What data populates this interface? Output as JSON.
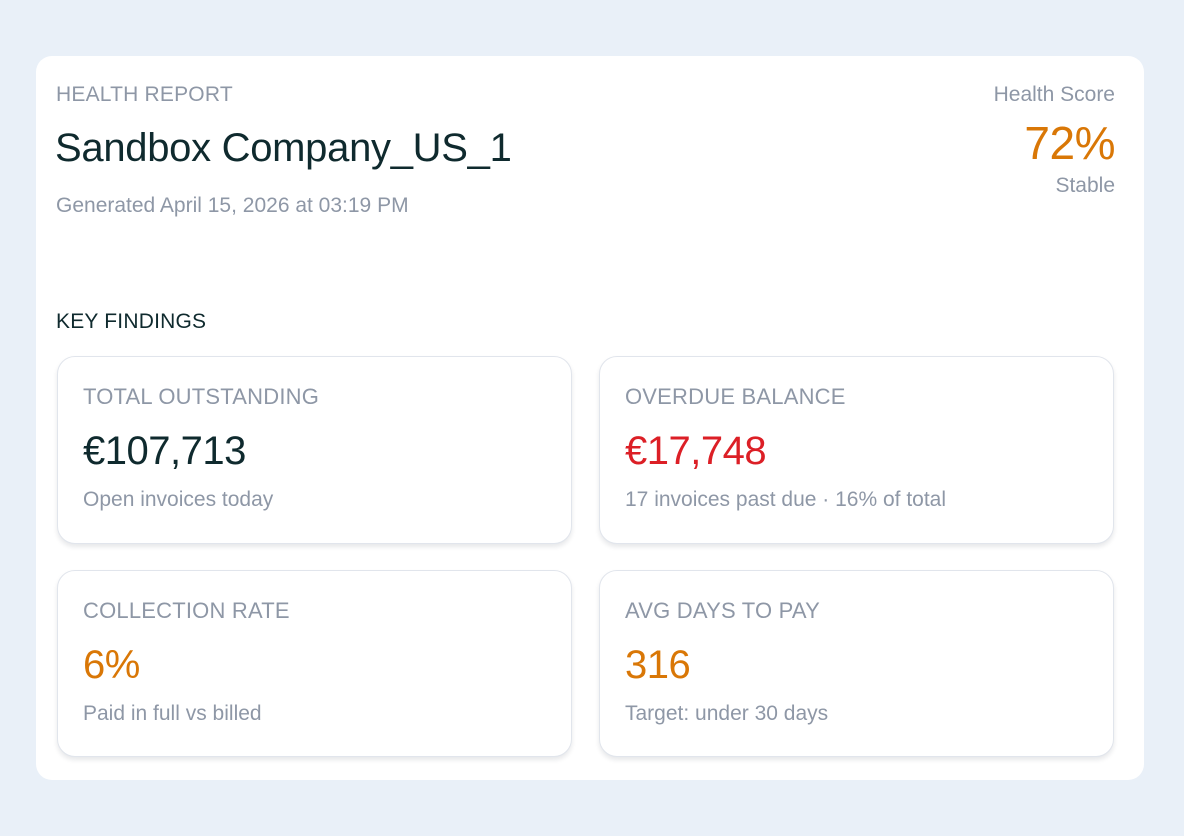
{
  "header": {
    "eyebrow": "HEALTH REPORT",
    "company_name": "Sandbox Company_US_1",
    "generated": "Generated April 15, 2026 at 03:19 PM"
  },
  "health_score": {
    "label": "Health Score",
    "value": "72%",
    "status": "Stable",
    "color": "#d97706"
  },
  "key_findings": {
    "title": "KEY FINDINGS",
    "cards": [
      {
        "label": "TOTAL OUTSTANDING",
        "value": "€107,713",
        "subtext": "Open invoices today",
        "value_color": "#0f2a2e"
      },
      {
        "label": "OVERDUE BALANCE",
        "value": "€17,748",
        "subtext": "17 invoices past due · 16% of total",
        "value_color": "#dc1f26"
      },
      {
        "label": "COLLECTION RATE",
        "value": "6%",
        "subtext": "Paid in full vs billed",
        "value_color": "#d97706"
      },
      {
        "label": "AVG DAYS TO PAY",
        "value": "316",
        "subtext": "Target: under 30 days",
        "value_color": "#d97706"
      }
    ]
  },
  "colors": {
    "page_background": "#e9f0f8",
    "card_background": "#ffffff",
    "text_primary": "#0f2a2e",
    "text_muted": "#8e97a6",
    "warning": "#d97706",
    "danger": "#dc1f26"
  }
}
